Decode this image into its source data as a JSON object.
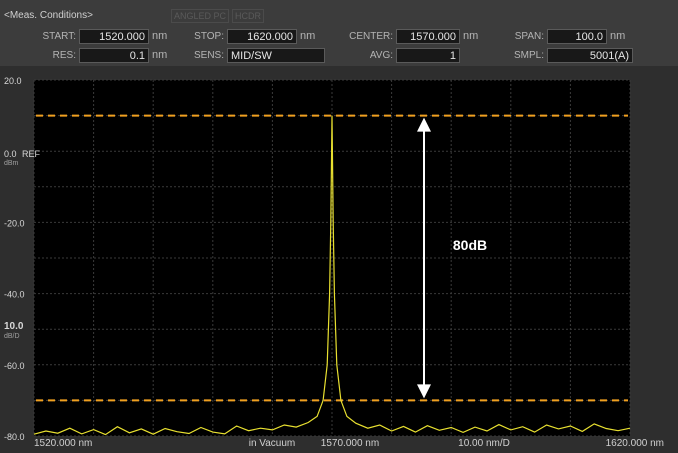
{
  "header": {
    "title": "<Meas. Conditions>",
    "tags": [
      "ANGLED PC",
      "HCDR"
    ],
    "fields": {
      "start": {
        "label": "START:",
        "value": "1520.000",
        "unit": "nm"
      },
      "stop": {
        "label": "STOP:",
        "value": "1620.000",
        "unit": "nm"
      },
      "center": {
        "label": "CENTER:",
        "value": "1570.000",
        "unit": "nm"
      },
      "span": {
        "label": "SPAN:",
        "value": "100.0",
        "unit": "nm"
      },
      "res": {
        "label": "RES:",
        "value": "0.1",
        "unit": "nm"
      },
      "sens": {
        "label": "SENS:",
        "value": "MID/SW"
      },
      "avg": {
        "label": "AVG:",
        "value": "1"
      },
      "smpl": {
        "label": "SMPL:",
        "value": "5001(A)"
      }
    }
  },
  "left_scale": {
    "ref_label": "REF",
    "ref_unit": "dBm",
    "scale_value": "10.0",
    "scale_unit": "dB/D"
  },
  "bottom_axis": {
    "start": "1520.000 nm",
    "medium": "in Vacuum",
    "center": "1570.000 nm",
    "per_div": "10.00 nm/D",
    "stop": "1620.000 nm"
  },
  "annotation": "80dB",
  "colors": {
    "trace": "#e8e030",
    "marker_lines": "#f0a020",
    "background": "#000000",
    "grid": "#3a3a3a"
  },
  "chart_data": {
    "type": "line",
    "xlabel": "",
    "ylabel": "",
    "x_unit": "nm",
    "y_unit": "dBm",
    "xlim": [
      1520,
      1620
    ],
    "ylim": [
      -80,
      20
    ],
    "y_ticks": [
      20,
      0,
      -20,
      -40,
      -60,
      -80
    ],
    "y_tick_labels": [
      "20.0",
      "0.0",
      "-20.0",
      "-40.0",
      "-60.0",
      "-80.0"
    ],
    "grid": true,
    "peak": {
      "x": 1570.0,
      "y": 10
    },
    "noise_floor_approx": -79,
    "threshold_lines_y": [
      10,
      -70
    ],
    "trace": [
      [
        1520,
        -79.5
      ],
      [
        1522,
        -78.6
      ],
      [
        1524,
        -79.2
      ],
      [
        1526,
        -77.8
      ],
      [
        1528,
        -79.4
      ],
      [
        1530,
        -78.2
      ],
      [
        1532,
        -79.6
      ],
      [
        1534,
        -77.4
      ],
      [
        1536,
        -79.1
      ],
      [
        1538,
        -78.0
      ],
      [
        1540,
        -79.5
      ],
      [
        1542,
        -77.9
      ],
      [
        1544,
        -78.8
      ],
      [
        1546,
        -79.3
      ],
      [
        1548,
        -77.6
      ],
      [
        1550,
        -78.9
      ],
      [
        1552,
        -79.4
      ],
      [
        1554,
        -77.2
      ],
      [
        1556,
        -78.5
      ],
      [
        1558,
        -77.8
      ],
      [
        1560,
        -78.3
      ],
      [
        1562,
        -76.9
      ],
      [
        1564,
        -77.5
      ],
      [
        1566,
        -76.2
      ],
      [
        1567.5,
        -74.5
      ],
      [
        1568.5,
        -70.0
      ],
      [
        1569.2,
        -60.0
      ],
      [
        1569.6,
        -40.0
      ],
      [
        1569.8,
        -20.0
      ],
      [
        1570.0,
        10
      ],
      [
        1570.2,
        -20.0
      ],
      [
        1570.4,
        -40.0
      ],
      [
        1570.8,
        -60.0
      ],
      [
        1571.5,
        -70.0
      ],
      [
        1572.5,
        -74.5
      ],
      [
        1574,
        -76.4
      ],
      [
        1576,
        -77.8
      ],
      [
        1578,
        -76.9
      ],
      [
        1580,
        -78.6
      ],
      [
        1582,
        -77.3
      ],
      [
        1584,
        -78.9
      ],
      [
        1586,
        -77.1
      ],
      [
        1588,
        -78.4
      ],
      [
        1590,
        -77.6
      ],
      [
        1592,
        -79.0
      ],
      [
        1594,
        -77.5
      ],
      [
        1596,
        -78.6
      ],
      [
        1598,
        -76.8
      ],
      [
        1600,
        -78.3
      ],
      [
        1602,
        -77.4
      ],
      [
        1604,
        -78.9
      ],
      [
        1606,
        -76.9
      ],
      [
        1608,
        -78.0
      ],
      [
        1610,
        -77.2
      ],
      [
        1612,
        -78.7
      ],
      [
        1614,
        -76.6
      ],
      [
        1616,
        -77.9
      ],
      [
        1618,
        -78.5
      ],
      [
        1620,
        -77.8
      ]
    ]
  }
}
